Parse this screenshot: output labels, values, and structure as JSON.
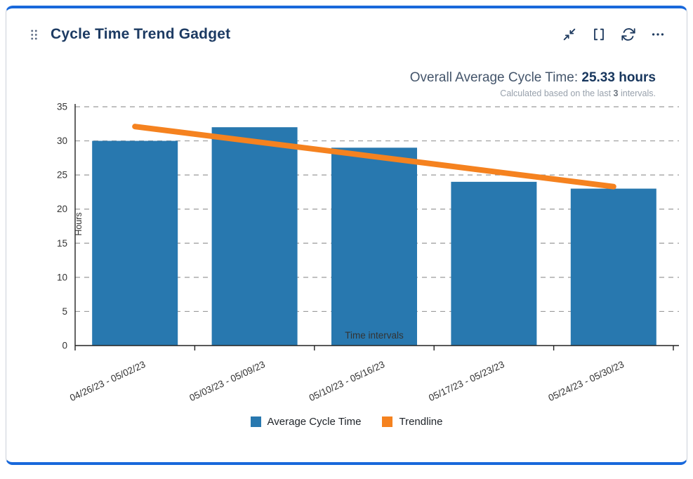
{
  "card": {
    "title": "Cycle Time Trend Gadget"
  },
  "toolbar": {
    "icons": [
      "minimize-icon",
      "fullscreen-icon",
      "refresh-icon",
      "more-icon"
    ]
  },
  "summary": {
    "label": "Overall Average Cycle Time:",
    "value": "25.33 hours",
    "note_prefix": "Calculated based on the last",
    "note_value": "3",
    "note_suffix": "intervals."
  },
  "chart_data": {
    "type": "bar",
    "categories": [
      "04/26/23 - 05/02/23",
      "05/03/23 - 05/09/23",
      "05/10/23 - 05/16/23",
      "05/17/23 - 05/23/23",
      "05/24/23 - 05/30/23"
    ],
    "series": [
      {
        "name": "Average Cycle Time",
        "type": "bar",
        "color": "#2878af",
        "values": [
          30,
          32,
          29,
          24,
          23
        ]
      },
      {
        "name": "Trendline",
        "type": "line",
        "color": "#f5821f",
        "values": [
          32.1,
          29.9,
          27.7,
          25.5,
          23.3
        ]
      }
    ],
    "title": "",
    "xlabel": "Time intervals",
    "ylabel": "Hours",
    "ylim": [
      0,
      35
    ],
    "ytick_step": 5,
    "grid": "horizontal-dashed",
    "legend_position": "bottom"
  },
  "colors": {
    "accent": "#1868db",
    "title_text": "#1d3b63",
    "axis": "#222222",
    "grid": "#9b9b9b",
    "tick_text": "#333333"
  }
}
